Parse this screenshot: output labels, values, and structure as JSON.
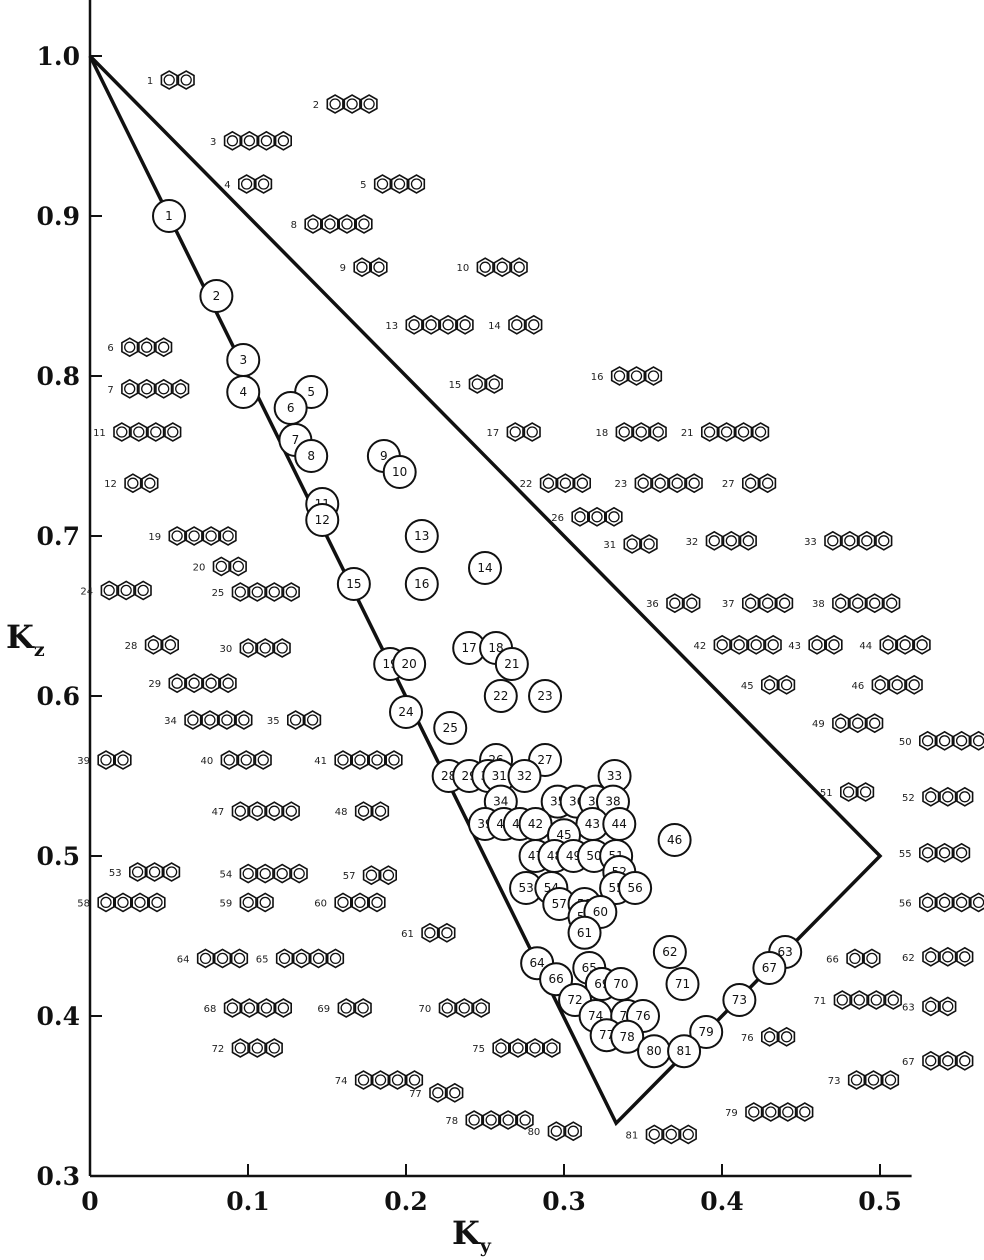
{
  "chart_data": {
    "type": "scatter",
    "xlabel": "K",
    "xlabel_sub": "y",
    "ylabel": "K",
    "ylabel_sub": "z",
    "xlim": [
      0,
      0.52
    ],
    "ylim": [
      0.3,
      1.05
    ],
    "xticks": [
      0,
      0.1,
      0.2,
      0.3,
      0.4,
      0.5
    ],
    "xtick_labels": [
      "0",
      "0.1",
      "0.2",
      "0.3",
      "0.4",
      "0.5"
    ],
    "yticks": [
      0.3,
      0.4,
      0.5,
      0.6,
      0.7,
      0.8,
      0.9,
      1.0
    ],
    "ytick_labels": [
      "0.3",
      "0.4",
      "0.5",
      "0.6",
      "0.7",
      "0.8",
      "0.9",
      "1.0"
    ],
    "grid": false,
    "triangle": [
      [
        0,
        1.0
      ],
      [
        0.5,
        0.5
      ],
      [
        0.333,
        0.333
      ]
    ],
    "series": [
      {
        "points": [
          {
            "label": "1",
            "x": 0.05,
            "y": 0.9
          },
          {
            "label": "2",
            "x": 0.08,
            "y": 0.85
          },
          {
            "label": "3",
            "x": 0.097,
            "y": 0.81
          },
          {
            "label": "4",
            "x": 0.097,
            "y": 0.79
          },
          {
            "label": "5",
            "x": 0.14,
            "y": 0.79
          },
          {
            "label": "6",
            "x": 0.127,
            "y": 0.78
          },
          {
            "label": "7",
            "x": 0.13,
            "y": 0.76
          },
          {
            "label": "8",
            "x": 0.14,
            "y": 0.75
          },
          {
            "label": "9",
            "x": 0.186,
            "y": 0.75
          },
          {
            "label": "10",
            "x": 0.196,
            "y": 0.74
          },
          {
            "label": "11",
            "x": 0.147,
            "y": 0.72
          },
          {
            "label": "12",
            "x": 0.147,
            "y": 0.71
          },
          {
            "label": "13",
            "x": 0.21,
            "y": 0.7
          },
          {
            "label": "14",
            "x": 0.25,
            "y": 0.68
          },
          {
            "label": "15",
            "x": 0.167,
            "y": 0.67
          },
          {
            "label": "16",
            "x": 0.21,
            "y": 0.67
          },
          {
            "label": "17",
            "x": 0.24,
            "y": 0.63
          },
          {
            "label": "18",
            "x": 0.257,
            "y": 0.63
          },
          {
            "label": "19",
            "x": 0.19,
            "y": 0.62
          },
          {
            "label": "20",
            "x": 0.202,
            "y": 0.62
          },
          {
            "label": "21",
            "x": 0.267,
            "y": 0.62
          },
          {
            "label": "22",
            "x": 0.26,
            "y": 0.6
          },
          {
            "label": "23",
            "x": 0.288,
            "y": 0.6
          },
          {
            "label": "24",
            "x": 0.2,
            "y": 0.59
          },
          {
            "label": "25",
            "x": 0.228,
            "y": 0.58
          },
          {
            "label": "26",
            "x": 0.257,
            "y": 0.56
          },
          {
            "label": "27",
            "x": 0.288,
            "y": 0.56
          },
          {
            "label": "28",
            "x": 0.227,
            "y": 0.55
          },
          {
            "label": "29",
            "x": 0.24,
            "y": 0.55
          },
          {
            "label": "30",
            "x": 0.252,
            "y": 0.55
          },
          {
            "label": "31",
            "x": 0.259,
            "y": 0.55
          },
          {
            "label": "32",
            "x": 0.275,
            "y": 0.55
          },
          {
            "label": "33",
            "x": 0.332,
            "y": 0.55
          },
          {
            "label": "34",
            "x": 0.26,
            "y": 0.534
          },
          {
            "label": "35",
            "x": 0.296,
            "y": 0.534
          },
          {
            "label": "36",
            "x": 0.308,
            "y": 0.534
          },
          {
            "label": "37",
            "x": 0.32,
            "y": 0.534
          },
          {
            "label": "38",
            "x": 0.331,
            "y": 0.534
          },
          {
            "label": "39",
            "x": 0.25,
            "y": 0.52
          },
          {
            "label": "40",
            "x": 0.262,
            "y": 0.52
          },
          {
            "label": "41",
            "x": 0.272,
            "y": 0.52
          },
          {
            "label": "42",
            "x": 0.282,
            "y": 0.52
          },
          {
            "label": "43",
            "x": 0.318,
            "y": 0.52
          },
          {
            "label": "44",
            "x": 0.335,
            "y": 0.52
          },
          {
            "label": "45",
            "x": 0.3,
            "y": 0.513
          },
          {
            "label": "46",
            "x": 0.37,
            "y": 0.51
          },
          {
            "label": "47",
            "x": 0.282,
            "y": 0.5
          },
          {
            "label": "48",
            "x": 0.294,
            "y": 0.5
          },
          {
            "label": "49",
            "x": 0.306,
            "y": 0.5
          },
          {
            "label": "50",
            "x": 0.319,
            "y": 0.5
          },
          {
            "label": "51",
            "x": 0.333,
            "y": 0.5
          },
          {
            "label": "52",
            "x": 0.335,
            "y": 0.49
          },
          {
            "label": "53",
            "x": 0.276,
            "y": 0.48
          },
          {
            "label": "54",
            "x": 0.292,
            "y": 0.48
          },
          {
            "label": "55",
            "x": 0.333,
            "y": 0.48
          },
          {
            "label": "56",
            "x": 0.345,
            "y": 0.48
          },
          {
            "label": "57",
            "x": 0.297,
            "y": 0.47
          },
          {
            "label": "58",
            "x": 0.313,
            "y": 0.47
          },
          {
            "label": "59",
            "x": 0.313,
            "y": 0.462
          },
          {
            "label": "60",
            "x": 0.323,
            "y": 0.465
          },
          {
            "label": "61",
            "x": 0.313,
            "y": 0.452
          },
          {
            "label": "62",
            "x": 0.367,
            "y": 0.44
          },
          {
            "label": "63",
            "x": 0.44,
            "y": 0.44
          },
          {
            "label": "64",
            "x": 0.283,
            "y": 0.433
          },
          {
            "label": "65",
            "x": 0.316,
            "y": 0.43
          },
          {
            "label": "66",
            "x": 0.295,
            "y": 0.423
          },
          {
            "label": "67",
            "x": 0.43,
            "y": 0.43
          },
          {
            "label": "68",
            "x": 0.324,
            "y": 0.42
          },
          {
            "label": "69",
            "x": 0.324,
            "y": 0.42
          },
          {
            "label": "70",
            "x": 0.336,
            "y": 0.42
          },
          {
            "label": "71",
            "x": 0.375,
            "y": 0.42
          },
          {
            "label": "72",
            "x": 0.307,
            "y": 0.41
          },
          {
            "label": "73",
            "x": 0.411,
            "y": 0.41
          },
          {
            "label": "74",
            "x": 0.32,
            "y": 0.4
          },
          {
            "label": "75",
            "x": 0.34,
            "y": 0.4
          },
          {
            "label": "76",
            "x": 0.35,
            "y": 0.4
          },
          {
            "label": "77",
            "x": 0.327,
            "y": 0.388
          },
          {
            "label": "78",
            "x": 0.34,
            "y": 0.387
          },
          {
            "label": "79",
            "x": 0.39,
            "y": 0.39
          },
          {
            "label": "80",
            "x": 0.357,
            "y": 0.378
          },
          {
            "label": "81",
            "x": 0.376,
            "y": 0.378
          }
        ]
      }
    ],
    "structures": [
      {
        "label": "1",
        "x": 0.04,
        "y": 0.985
      },
      {
        "label": "2",
        "x": 0.145,
        "y": 0.97
      },
      {
        "label": "3",
        "x": 0.08,
        "y": 0.947
      },
      {
        "label": "4",
        "x": 0.089,
        "y": 0.92
      },
      {
        "label": "5",
        "x": 0.175,
        "y": 0.92
      },
      {
        "label": "8",
        "x": 0.131,
        "y": 0.895
      },
      {
        "label": "9",
        "x": 0.162,
        "y": 0.868
      },
      {
        "label": "10",
        "x": 0.24,
        "y": 0.868
      },
      {
        "label": "13",
        "x": 0.195,
        "y": 0.832
      },
      {
        "label": "14",
        "x": 0.26,
        "y": 0.832
      },
      {
        "label": "6",
        "x": 0.015,
        "y": 0.818
      },
      {
        "label": "7",
        "x": 0.015,
        "y": 0.792
      },
      {
        "label": "15",
        "x": 0.235,
        "y": 0.795
      },
      {
        "label": "16",
        "x": 0.325,
        "y": 0.8
      },
      {
        "label": "11",
        "x": 0.01,
        "y": 0.765
      },
      {
        "label": "17",
        "x": 0.259,
        "y": 0.765
      },
      {
        "label": "18",
        "x": 0.328,
        "y": 0.765
      },
      {
        "label": "21",
        "x": 0.382,
        "y": 0.765
      },
      {
        "label": "12",
        "x": 0.017,
        "y": 0.733
      },
      {
        "label": "22",
        "x": 0.28,
        "y": 0.733
      },
      {
        "label": "23",
        "x": 0.34,
        "y": 0.733
      },
      {
        "label": "27",
        "x": 0.408,
        "y": 0.733
      },
      {
        "label": "26",
        "x": 0.3,
        "y": 0.712
      },
      {
        "label": "19",
        "x": 0.045,
        "y": 0.7
      },
      {
        "label": "31",
        "x": 0.333,
        "y": 0.695
      },
      {
        "label": "32",
        "x": 0.385,
        "y": 0.697
      },
      {
        "label": "33",
        "x": 0.46,
        "y": 0.697
      },
      {
        "label": "20",
        "x": 0.073,
        "y": 0.681
      },
      {
        "label": "24",
        "x": 0.002,
        "y": 0.666
      },
      {
        "label": "25",
        "x": 0.085,
        "y": 0.665
      },
      {
        "label": "36",
        "x": 0.36,
        "y": 0.658
      },
      {
        "label": "37",
        "x": 0.408,
        "y": 0.658
      },
      {
        "label": "38",
        "x": 0.465,
        "y": 0.658
      },
      {
        "label": "28",
        "x": 0.03,
        "y": 0.632
      },
      {
        "label": "30",
        "x": 0.09,
        "y": 0.63
      },
      {
        "label": "42",
        "x": 0.39,
        "y": 0.632
      },
      {
        "label": "43",
        "x": 0.45,
        "y": 0.632
      },
      {
        "label": "44",
        "x": 0.495,
        "y": 0.632
      },
      {
        "label": "29",
        "x": 0.045,
        "y": 0.608
      },
      {
        "label": "45",
        "x": 0.42,
        "y": 0.607
      },
      {
        "label": "46",
        "x": 0.49,
        "y": 0.607
      },
      {
        "label": "34",
        "x": 0.055,
        "y": 0.585
      },
      {
        "label": "35",
        "x": 0.12,
        "y": 0.585
      },
      {
        "label": "49",
        "x": 0.465,
        "y": 0.583
      },
      {
        "label": "50",
        "x": 0.52,
        "y": 0.572
      },
      {
        "label": "39",
        "x": 0.0,
        "y": 0.56
      },
      {
        "label": "40",
        "x": 0.078,
        "y": 0.56
      },
      {
        "label": "41",
        "x": 0.15,
        "y": 0.56
      },
      {
        "label": "51",
        "x": 0.47,
        "y": 0.54
      },
      {
        "label": "52",
        "x": 0.522,
        "y": 0.537
      },
      {
        "label": "47",
        "x": 0.085,
        "y": 0.528
      },
      {
        "label": "48",
        "x": 0.163,
        "y": 0.528
      },
      {
        "label": "53",
        "x": 0.02,
        "y": 0.49
      },
      {
        "label": "54",
        "x": 0.09,
        "y": 0.489
      },
      {
        "label": "57",
        "x": 0.168,
        "y": 0.488
      },
      {
        "label": "55",
        "x": 0.52,
        "y": 0.502
      },
      {
        "label": "58",
        "x": 0.0,
        "y": 0.471
      },
      {
        "label": "59",
        "x": 0.09,
        "y": 0.471
      },
      {
        "label": "60",
        "x": 0.15,
        "y": 0.471
      },
      {
        "label": "56",
        "x": 0.52,
        "y": 0.471
      },
      {
        "label": "61",
        "x": 0.205,
        "y": 0.452
      },
      {
        "label": "64",
        "x": 0.063,
        "y": 0.436
      },
      {
        "label": "65",
        "x": 0.113,
        "y": 0.436
      },
      {
        "label": "66",
        "x": 0.474,
        "y": 0.436
      },
      {
        "label": "62",
        "x": 0.522,
        "y": 0.437
      },
      {
        "label": "68",
        "x": 0.08,
        "y": 0.405
      },
      {
        "label": "69",
        "x": 0.152,
        "y": 0.405
      },
      {
        "label": "70",
        "x": 0.216,
        "y": 0.405
      },
      {
        "label": "71",
        "x": 0.466,
        "y": 0.41
      },
      {
        "label": "63",
        "x": 0.522,
        "y": 0.406
      },
      {
        "label": "72",
        "x": 0.085,
        "y": 0.38
      },
      {
        "label": "75",
        "x": 0.25,
        "y": 0.38
      },
      {
        "label": "76",
        "x": 0.42,
        "y": 0.387
      },
      {
        "label": "67",
        "x": 0.522,
        "y": 0.372
      },
      {
        "label": "74",
        "x": 0.163,
        "y": 0.36
      },
      {
        "label": "77",
        "x": 0.21,
        "y": 0.352
      },
      {
        "label": "73",
        "x": 0.475,
        "y": 0.36
      },
      {
        "label": "78",
        "x": 0.233,
        "y": 0.335
      },
      {
        "label": "80",
        "x": 0.285,
        "y": 0.328
      },
      {
        "label": "81",
        "x": 0.347,
        "y": 0.326
      },
      {
        "label": "79",
        "x": 0.41,
        "y": 0.34
      }
    ]
  },
  "colors": {
    "ink": "#111111",
    "background": "#ffffff"
  }
}
